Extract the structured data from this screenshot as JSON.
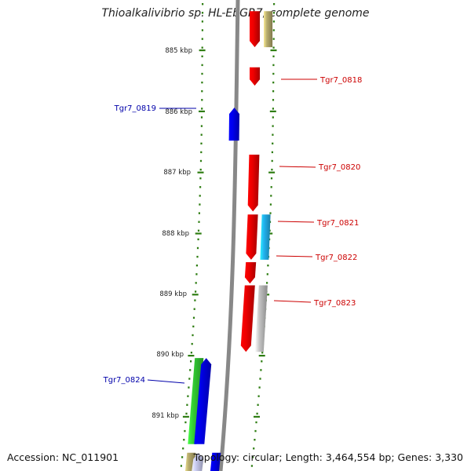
{
  "title": "Thioalkalivibrio sp. HL-EbGR7, complete genome",
  "footer": {
    "accession": "Accession: NC_011901",
    "topology": "Topology: circular; Length: 3,464,554 bp; Genes: 3,330"
  },
  "scale": {
    "unit": "kbp",
    "ticks": [
      "885 kbp",
      "886 kbp",
      "887 kbp",
      "888 kbp",
      "889 kbp",
      "890 kbp",
      "891 kbp"
    ]
  },
  "colors": {
    "backbone": "#888888",
    "tick_mark": "#2e7d12",
    "forward_label": "#cc0000",
    "reverse_label": "#0000aa",
    "red": "#ee0000",
    "blue": "#0000ee",
    "cyan": "#22b4f0",
    "green": "#33cc33",
    "olive": "#b8ad6e",
    "gray": "#c4c4c4",
    "lavender": "#cdd0f5"
  },
  "gene_labels": {
    "forward": [
      "Tgr7_0818",
      "Tgr7_0820",
      "Tgr7_0821",
      "Tgr7_0822",
      "Tgr7_0823"
    ],
    "reverse": [
      "Tgr7_0819",
      "Tgr7_0824"
    ]
  },
  "features": [
    {
      "strand": "+",
      "track": "gene",
      "color": "red",
      "start_kbp": 884.36,
      "end_kbp": 884.95
    },
    {
      "strand": "+",
      "track": "cds",
      "color": "olive",
      "start_kbp": 884.36,
      "end_kbp": 884.95
    },
    {
      "strand": "+",
      "track": "gene",
      "color": "red",
      "start_kbp": 885.28,
      "end_kbp": 885.58
    },
    {
      "strand": "-",
      "track": "gene",
      "color": "blue",
      "start_kbp": 885.94,
      "end_kbp": 886.48
    },
    {
      "strand": "+",
      "track": "gene",
      "color": "red",
      "start_kbp": 886.71,
      "end_kbp": 887.64
    },
    {
      "strand": "+",
      "track": "gene",
      "color": "red",
      "start_kbp": 887.69,
      "end_kbp": 888.43
    },
    {
      "strand": "+",
      "track": "cds",
      "color": "cyan",
      "start_kbp": 887.69,
      "end_kbp": 888.43
    },
    {
      "strand": "+",
      "track": "gene",
      "color": "red",
      "start_kbp": 888.47,
      "end_kbp": 888.82
    },
    {
      "strand": "+",
      "track": "gene",
      "color": "red",
      "start_kbp": 888.85,
      "end_kbp": 889.94
    },
    {
      "strand": "+",
      "track": "cds",
      "color": "gray",
      "start_kbp": 888.85,
      "end_kbp": 889.94
    },
    {
      "strand": "-",
      "track": "cds",
      "color": "green",
      "start_kbp": 890.04,
      "end_kbp": 891.45
    },
    {
      "strand": "-",
      "track": "gene",
      "color": "blue",
      "start_kbp": 890.04,
      "end_kbp": 891.45
    },
    {
      "strand": "-",
      "track": "cds",
      "color": "olive",
      "start_kbp": 891.59,
      "end_kbp": 892.0
    },
    {
      "strand": "-",
      "track": "gene",
      "color": "lavender",
      "start_kbp": 891.59,
      "end_kbp": 892.0
    },
    {
      "strand": "-",
      "track": "cds",
      "color": "blue",
      "start_kbp": 891.59,
      "end_kbp": 892.0
    }
  ]
}
